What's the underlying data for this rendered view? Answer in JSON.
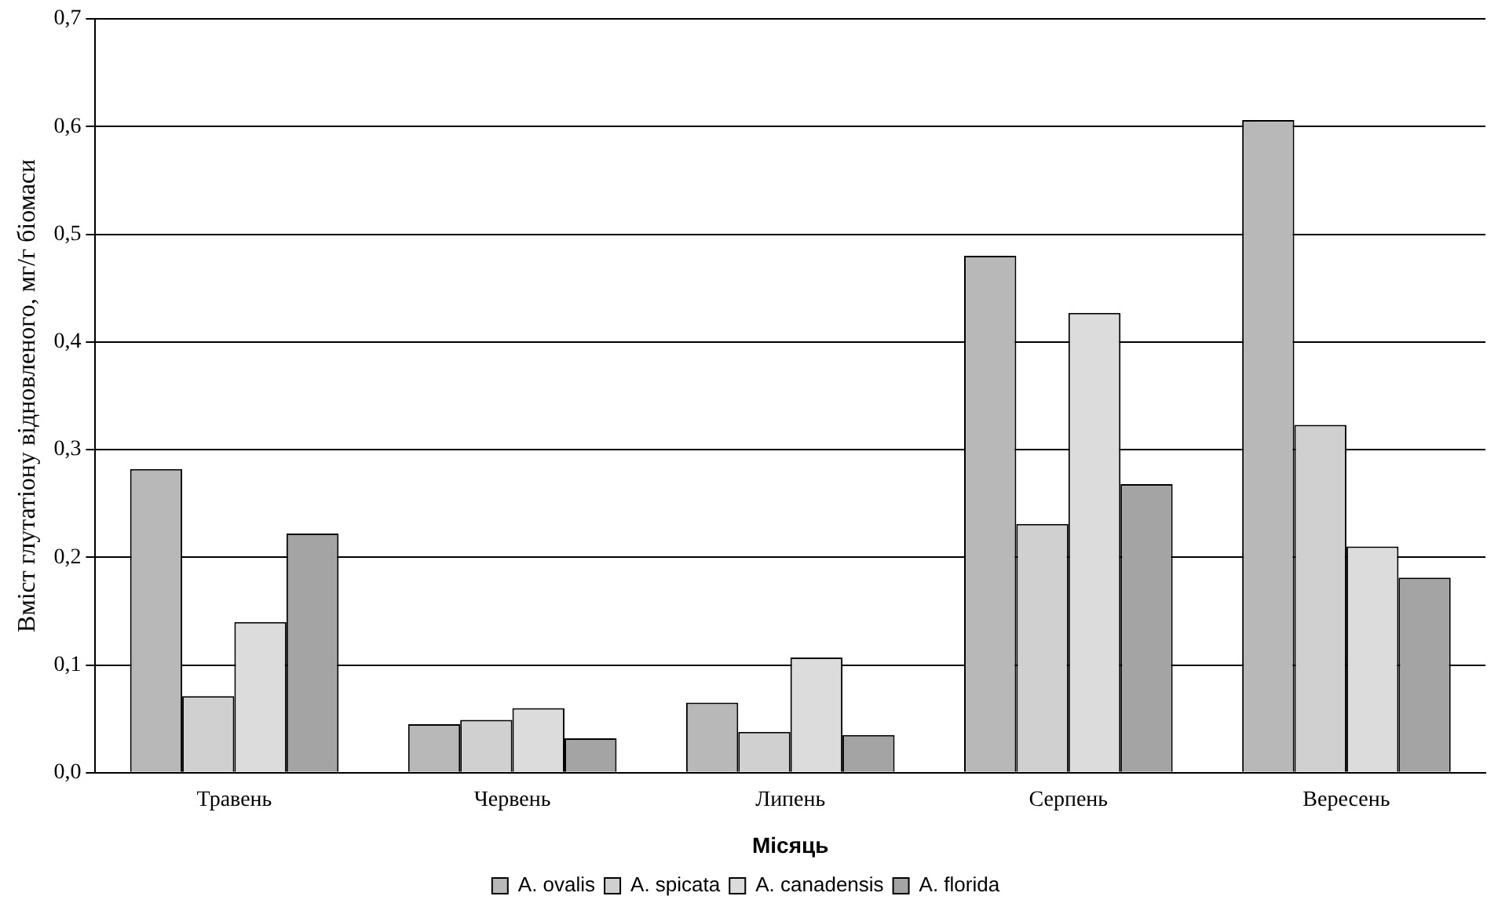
{
  "chart_data": {
    "type": "bar",
    "xlabel": "Місяць",
    "ylabel": "Вміст глутатіону відновленого, мг/г біомаси",
    "categories": [
      "Травень",
      "Червень",
      "Липень",
      "Серпень",
      "Вересень"
    ],
    "series": [
      {
        "name": "A. ovalis",
        "color": "#b8b8b8",
        "values": [
          0.282,
          0.045,
          0.065,
          0.48,
          0.606
        ]
      },
      {
        "name": "A. spicata",
        "color": "#d0d0d0",
        "values": [
          0.071,
          0.049,
          0.038,
          0.231,
          0.323
        ]
      },
      {
        "name": "A. canadensis",
        "color": "#dcdcdc",
        "values": [
          0.14,
          0.06,
          0.107,
          0.427,
          0.21
        ]
      },
      {
        "name": "A. florida",
        "color": "#a4a4a4",
        "values": [
          0.222,
          0.032,
          0.035,
          0.268,
          0.181
        ]
      }
    ],
    "ylim": [
      0,
      0.7
    ],
    "yticks": [
      {
        "value": 0,
        "label": "0,0"
      },
      {
        "value": 0.1,
        "label": "0,1"
      },
      {
        "value": 0.2,
        "label": "0,2"
      },
      {
        "value": 0.3,
        "label": "0,3"
      },
      {
        "value": 0.4,
        "label": "0,4"
      },
      {
        "value": 0.5,
        "label": "0,5"
      },
      {
        "value": 0.6,
        "label": "0,6"
      },
      {
        "value": 0.7,
        "label": "0,7"
      }
    ],
    "grid": "y",
    "legend": "bottom"
  }
}
